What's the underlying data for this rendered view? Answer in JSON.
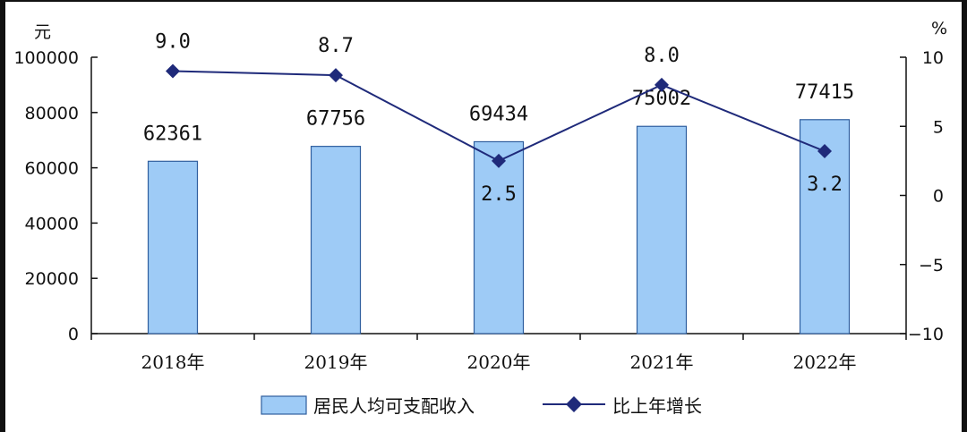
{
  "chart_data": {
    "type": "bar+line",
    "title": "",
    "categories": [
      "2018年",
      "2019年",
      "2020年",
      "2021年",
      "2022年"
    ],
    "left_axis": {
      "unit": "元",
      "range": [
        0,
        100000
      ],
      "ticks": [
        "0",
        "20000",
        "40000",
        "60000",
        "80000",
        "100000"
      ]
    },
    "right_axis": {
      "unit": "%",
      "range": [
        -10,
        10
      ],
      "ticks": [
        "−10",
        "−5",
        "0",
        "5",
        "10"
      ]
    },
    "series": [
      {
        "name": "居民人均可支配收入",
        "type": "bar",
        "axis": "left",
        "values": [
          62361,
          67756,
          69434,
          75002,
          77415
        ],
        "labels": [
          "62361",
          "67756",
          "69434",
          "75002",
          "77415"
        ],
        "color": "#9ecbf6",
        "border": "#2f5e9e"
      },
      {
        "name": "比上年增长",
        "type": "line",
        "axis": "right",
        "values": [
          9.0,
          8.7,
          2.5,
          8.0,
          3.2
        ],
        "labels": [
          "9.0",
          "8.7",
          "2.5",
          "8.0",
          "3.2"
        ],
        "color": "#1f2a7a",
        "marker": "diamond"
      }
    ],
    "legend_position": "bottom",
    "grid": false
  }
}
